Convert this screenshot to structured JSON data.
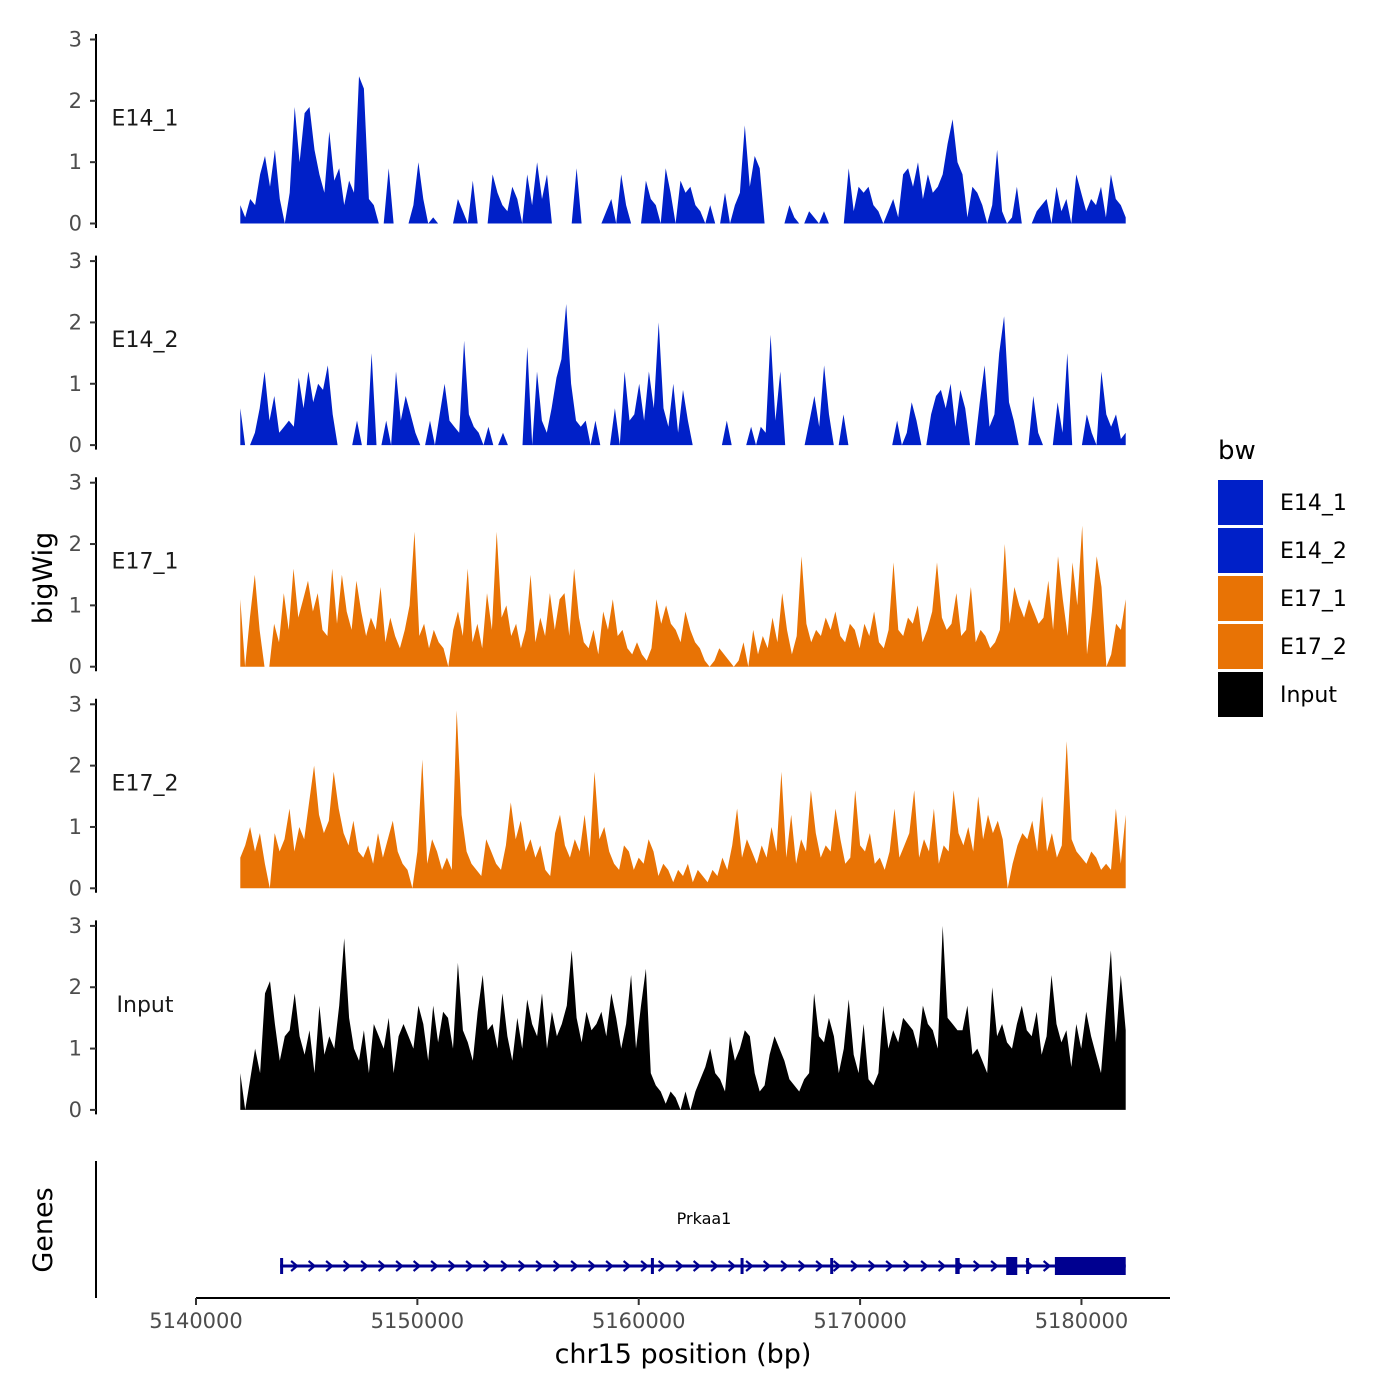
{
  "chart_data": {
    "type": "area",
    "title": "",
    "ylabel": "bigWig",
    "xlabel": "chr15 position (bp)",
    "genes_label": "Genes",
    "ylim": [
      0,
      3
    ],
    "yticks": [
      0,
      1,
      2,
      3
    ],
    "ytick_labels": [
      "0",
      "1",
      "2",
      "3"
    ],
    "xlim": [
      5140000,
      5184000
    ],
    "xticks": [
      5140000,
      5150000,
      5160000,
      5170000,
      5180000
    ],
    "xtick_labels": [
      "5140000",
      "5150000",
      "5160000",
      "5170000",
      "5180000"
    ],
    "x_start": 5142000,
    "x_end": 5182000,
    "legend": {
      "title": "bw",
      "position": "right",
      "entries": [
        {
          "label": "E14_1",
          "color": "#0020c8"
        },
        {
          "label": "E14_2",
          "color": "#0020c8"
        },
        {
          "label": "E17_1",
          "color": "#e87305"
        },
        {
          "label": "E17_2",
          "color": "#e87305"
        },
        {
          "label": "Input",
          "color": "#000000"
        }
      ]
    },
    "series": [
      {
        "name": "E14_1",
        "label": "E14_1",
        "color": "#0020c8",
        "values": [
          0.3,
          0.1,
          0.4,
          0.3,
          0.8,
          1.1,
          0.6,
          1.2,
          0.4,
          0,
          0.5,
          1.9,
          1.0,
          1.8,
          1.9,
          1.2,
          0.8,
          0.5,
          1.5,
          0.7,
          0.9,
          0.3,
          0.7,
          0.5,
          2.4,
          2.2,
          0.4,
          0.3,
          0,
          0,
          0.9,
          0,
          0,
          0,
          0,
          0.3,
          1.0,
          0.4,
          0,
          0.1,
          0,
          0,
          0,
          0,
          0.4,
          0.2,
          0,
          0.7,
          0,
          0,
          0,
          0.8,
          0.5,
          0.3,
          0.2,
          0.6,
          0.4,
          0,
          0.8,
          0.3,
          1.0,
          0.4,
          0.8,
          0,
          0,
          0,
          0,
          0,
          0.9,
          0,
          0,
          0,
          0,
          0,
          0.2,
          0.4,
          0,
          0.8,
          0.3,
          0,
          0,
          0,
          0.7,
          0.4,
          0.3,
          0,
          0.9,
          0.5,
          0,
          0.7,
          0.5,
          0.6,
          0.3,
          0.2,
          0,
          0.3,
          0,
          0,
          0.5,
          0,
          0.3,
          0.5,
          1.6,
          0.6,
          1.1,
          0.9,
          0,
          0,
          0,
          0,
          0,
          0.3,
          0.1,
          0,
          0,
          0.2,
          0.1,
          0,
          0.2,
          0,
          0,
          0,
          0,
          0.9,
          0.2,
          0.6,
          0.5,
          0.6,
          0.3,
          0.2,
          0,
          0.2,
          0.4,
          0.1,
          0.8,
          0.9,
          0.6,
          1.0,
          0.4,
          0.8,
          0.5,
          0.6,
          0.8,
          1.3,
          1.7,
          1.0,
          0.8,
          0.1,
          0.6,
          0.5,
          0.3,
          0,
          0.3,
          1.2,
          0.2,
          0,
          0.1,
          0.6,
          0,
          0,
          0,
          0.2,
          0.3,
          0.4,
          0,
          0.6,
          0.2,
          0.4,
          0,
          0.8,
          0.5,
          0.2,
          0.4,
          0.3,
          0.6,
          0.1,
          0.8,
          0.4,
          0.3,
          0.1
        ],
        "gene_bar": false
      },
      {
        "name": "E14_2",
        "label": "E14_2",
        "color": "#0020c8",
        "values": [
          0.6,
          0,
          0,
          0.2,
          0.6,
          1.2,
          0.4,
          0.8,
          0.2,
          0.3,
          0.4,
          0.3,
          1.1,
          0.6,
          1.2,
          0.7,
          1.0,
          0.9,
          1.3,
          0.5,
          0,
          0,
          0,
          0,
          0.4,
          0,
          0,
          1.5,
          0,
          0,
          0.4,
          0,
          1.2,
          0.4,
          0.8,
          0.5,
          0.2,
          0,
          0,
          0.4,
          0,
          0.5,
          1.0,
          0.4,
          0.3,
          0.2,
          1.7,
          0.5,
          0.3,
          0.2,
          0,
          0.3,
          0,
          0,
          0.2,
          0,
          0,
          0,
          0,
          1.6,
          0,
          1.2,
          0.4,
          0.2,
          0.6,
          1.1,
          1.4,
          2.3,
          1.0,
          0.4,
          0.3,
          0.4,
          0,
          0.4,
          0,
          0,
          0,
          0.6,
          0,
          1.2,
          0.4,
          0.5,
          1.0,
          0.4,
          1.2,
          0.6,
          2.0,
          0.6,
          0.3,
          1.0,
          0.2,
          0.9,
          0.4,
          0,
          0,
          0,
          0,
          0,
          0,
          0,
          0.4,
          0,
          0,
          0,
          0,
          0.3,
          0,
          0.3,
          0.2,
          1.8,
          0.4,
          1.2,
          0,
          0,
          0,
          0,
          0,
          0.4,
          0.8,
          0.3,
          1.3,
          0.5,
          0,
          0,
          0.5,
          0,
          0,
          0,
          0,
          0,
          0,
          0,
          0,
          0,
          0,
          0.4,
          0,
          0.2,
          0.7,
          0.4,
          0,
          0,
          0.5,
          0.8,
          0.9,
          0.6,
          1.0,
          0.3,
          0.9,
          0.6,
          0,
          0,
          0.7,
          1.3,
          0.3,
          0.5,
          1.5,
          2.1,
          0.7,
          0.4,
          0,
          0,
          0,
          0.8,
          0.2,
          0,
          0,
          0,
          0.7,
          0.2,
          1.5,
          0,
          0,
          0,
          0.5,
          0.2,
          0,
          1.2,
          0.5,
          0.3,
          0.5,
          0.1,
          0.2
        ],
        "gene_bar": false
      },
      {
        "name": "E17_1",
        "label": "E17_1",
        "color": "#e87305",
        "values": [
          1.1,
          0,
          0.8,
          1.5,
          0.6,
          0,
          0,
          0.7,
          0.4,
          1.2,
          0.6,
          1.6,
          0.8,
          1.1,
          1.4,
          0.9,
          1.2,
          0.6,
          0.5,
          1.6,
          0.7,
          1.5,
          0.9,
          0.6,
          1.4,
          0.9,
          0.5,
          0.8,
          0.6,
          1.3,
          0.4,
          0.8,
          0.5,
          0.3,
          0.6,
          1.0,
          2.2,
          0.5,
          0.7,
          0.3,
          0.6,
          0.4,
          0.3,
          0,
          0.6,
          0.9,
          0.5,
          1.6,
          0.4,
          0.7,
          0.3,
          1.2,
          0.6,
          2.2,
          0.8,
          1.0,
          0.5,
          0.7,
          0.3,
          0.6,
          1.5,
          0.4,
          0.8,
          0.5,
          1.2,
          0.6,
          1.1,
          1.2,
          0.5,
          1.6,
          0.8,
          0.4,
          0.3,
          0.6,
          0.2,
          0.9,
          0.6,
          1.1,
          0.5,
          0.6,
          0.3,
          0.2,
          0.4,
          0.2,
          0.1,
          0.3,
          1.1,
          0.7,
          1.0,
          0.7,
          0.6,
          0.4,
          0.9,
          0.6,
          0.4,
          0.3,
          0.1,
          0,
          0.1,
          0.3,
          0.2,
          0.1,
          0,
          0.1,
          0.4,
          0,
          0.6,
          0.2,
          0.5,
          0.3,
          0.8,
          0.4,
          1.2,
          0.6,
          0.2,
          0.5,
          1.8,
          0.7,
          0.4,
          0.6,
          0.5,
          0.8,
          0.6,
          0.9,
          0.5,
          0.4,
          0.7,
          0.6,
          0.3,
          0.7,
          0.5,
          0.9,
          0.4,
          0.3,
          0.6,
          1.7,
          0.6,
          0.5,
          0.8,
          0.7,
          1.0,
          0.4,
          0.6,
          0.9,
          1.7,
          0.8,
          0.6,
          0.7,
          1.2,
          0.5,
          0.6,
          1.3,
          0.4,
          0.6,
          0.5,
          0.3,
          0.4,
          0.6,
          2.0,
          0.7,
          1.3,
          1.0,
          0.8,
          1.1,
          0.9,
          0.7,
          0.8,
          1.4,
          0.6,
          1.8,
          1.1,
          0.5,
          1.7,
          1.0,
          2.3,
          0.2,
          0.9,
          1.8,
          1.3,
          0,
          0.2,
          0.7,
          0.6,
          1.1
        ],
        "gene_bar": false
      },
      {
        "name": "E17_2",
        "label": "E17_2",
        "color": "#e87305",
        "values": [
          0.5,
          0.7,
          1.0,
          0.6,
          0.9,
          0.4,
          0,
          0.9,
          0.6,
          0.8,
          1.3,
          0.6,
          1.0,
          0.8,
          1.4,
          2.0,
          1.2,
          0.9,
          1.1,
          1.9,
          1.3,
          0.9,
          0.7,
          1.1,
          0.6,
          0.5,
          0.7,
          0.4,
          0.9,
          0.5,
          0.8,
          1.1,
          0.6,
          0.4,
          0.3,
          0,
          0.6,
          2.1,
          0.4,
          0.8,
          0.6,
          0.3,
          0.5,
          0.3,
          2.9,
          1.2,
          0.6,
          0.4,
          0.3,
          0.2,
          0.8,
          0.6,
          0.4,
          0.3,
          0.7,
          1.4,
          0.8,
          1.1,
          0.6,
          0.8,
          0.5,
          0.7,
          0.3,
          0.2,
          0.9,
          1.2,
          0.7,
          0.5,
          0.8,
          0.6,
          1.2,
          0.5,
          1.9,
          0.8,
          1.0,
          0.6,
          0.4,
          0.3,
          0.7,
          0.6,
          0.3,
          0.5,
          0.4,
          0.8,
          0.6,
          0.2,
          0.4,
          0.3,
          0.1,
          0.3,
          0.2,
          0.4,
          0.1,
          0.3,
          0.2,
          0.1,
          0.3,
          0.2,
          0.5,
          0.3,
          0.7,
          1.3,
          0.5,
          0.8,
          0.6,
          0.4,
          0.7,
          0.5,
          1.0,
          0.6,
          1.9,
          0.5,
          1.2,
          0.4,
          0.8,
          0.6,
          1.6,
          0.9,
          0.5,
          0.7,
          0.6,
          1.3,
          0.8,
          0.4,
          0.5,
          1.6,
          0.7,
          0.6,
          0.9,
          0.4,
          0.5,
          0.3,
          0.6,
          1.3,
          0.5,
          0.7,
          0.9,
          1.6,
          0.5,
          0.8,
          0.6,
          1.3,
          0.4,
          0.7,
          0.6,
          1.6,
          0.9,
          0.7,
          1.0,
          0.6,
          1.5,
          0.8,
          1.2,
          0.9,
          1.1,
          0.8,
          0,
          0.4,
          0.7,
          0.9,
          0.8,
          1.1,
          0.6,
          1.5,
          0.6,
          0.9,
          0.5,
          0.7,
          2.4,
          0.8,
          0.6,
          0.5,
          0.4,
          0.6,
          0.5,
          0.3,
          0.4,
          0.3,
          1.3,
          0.4,
          1.2
        ],
        "gene_bar": false
      },
      {
        "name": "Input",
        "label": "Input",
        "color": "#000000",
        "values": [
          0.6,
          0,
          0.5,
          1.0,
          0.6,
          1.9,
          2.1,
          1.4,
          0.8,
          1.2,
          1.3,
          1.9,
          1.2,
          0.9,
          1.3,
          0.6,
          1.7,
          0.9,
          1.2,
          1.0,
          1.7,
          2.8,
          1.5,
          1.0,
          0.8,
          1.3,
          0.6,
          1.4,
          1.2,
          1.0,
          1.5,
          0.6,
          1.2,
          1.4,
          1.2,
          1.0,
          1.7,
          1.4,
          0.8,
          1.7,
          1.1,
          1.6,
          1.5,
          1.0,
          2.4,
          1.3,
          1.1,
          0.8,
          1.6,
          2.2,
          1.3,
          1.4,
          1.0,
          1.9,
          1.2,
          0.8,
          1.5,
          1.0,
          1.8,
          1.4,
          1.2,
          1.9,
          1.0,
          1.6,
          1.2,
          1.4,
          1.7,
          2.6,
          1.5,
          1.1,
          1.6,
          1.3,
          1.4,
          1.6,
          1.2,
          1.9,
          1.5,
          1.0,
          1.4,
          2.2,
          1.0,
          1.7,
          2.3,
          0.6,
          0.4,
          0.3,
          0.1,
          0.3,
          0.2,
          0,
          0.3,
          0,
          0.3,
          0.5,
          0.7,
          1.0,
          0.6,
          0.5,
          0.3,
          1.2,
          0.8,
          1.0,
          1.3,
          1.2,
          0.6,
          0.3,
          0.4,
          0.9,
          1.2,
          1.0,
          0.8,
          0.5,
          0.4,
          0.3,
          0.5,
          0.6,
          1.9,
          1.2,
          1.1,
          1.5,
          1.2,
          0.6,
          1.0,
          1.8,
          0.9,
          0.6,
          1.4,
          0.5,
          0.4,
          0.6,
          1.7,
          1.0,
          1.3,
          1.1,
          1.5,
          1.4,
          1.3,
          1.0,
          1.7,
          1.4,
          1.3,
          1.0,
          3.0,
          1.5,
          1.4,
          1.3,
          1.3,
          1.7,
          0.9,
          1.0,
          0.8,
          0.6,
          2.0,
          1.2,
          1.4,
          1.1,
          1.0,
          1.4,
          1.7,
          1.3,
          1.2,
          1.6,
          0.9,
          1.2,
          2.2,
          1.4,
          1.1,
          1.3,
          0.7,
          1.4,
          1.0,
          1.6,
          1.2,
          0.9,
          0.6,
          1.6,
          2.6,
          1.1,
          2.2,
          1.3
        ],
        "gene_bar": false
      }
    ],
    "gene_track": {
      "gene": "Prkaa1",
      "color": "#000090",
      "start": 5143800,
      "end": 5182000,
      "exons": [
        [
          5143800,
          5143900
        ],
        [
          5160550,
          5160650
        ],
        [
          5164600,
          5164700
        ],
        [
          5168650,
          5168750
        ],
        [
          5174300,
          5174500
        ],
        [
          5176600,
          5177100
        ],
        [
          5177500,
          5177550
        ],
        [
          5178800,
          5182000
        ]
      ]
    }
  }
}
